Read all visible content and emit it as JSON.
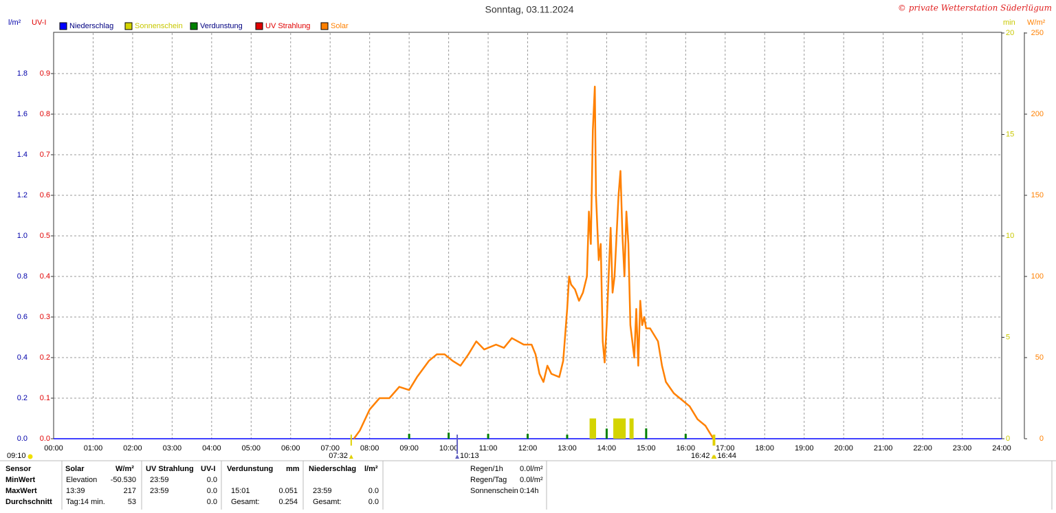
{
  "chart_data": {
    "type": "line",
    "title": "Sonntag, 03.11.2024",
    "copyright": "© private Wetterstation Süderlügum",
    "y_unit": "l/m²",
    "uv_unit": "UV-I",
    "y3_unit": "min",
    "y2_unit": "W/m²",
    "xlim": [
      0,
      24
    ],
    "xticks": [
      {
        "value": 0,
        "label": "00:00"
      },
      {
        "value": 1,
        "label": "01:00"
      },
      {
        "value": 2,
        "label": "02:00"
      },
      {
        "value": 3,
        "label": "03:00"
      },
      {
        "value": 4,
        "label": "04:00"
      },
      {
        "value": 5,
        "label": "05:00"
      },
      {
        "value": 6,
        "label": "06:00"
      },
      {
        "value": 7,
        "label": "07:00"
      },
      {
        "value": 8,
        "label": "08:00"
      },
      {
        "value": 9,
        "label": "09:00"
      },
      {
        "value": 10,
        "label": "10:00"
      },
      {
        "value": 11,
        "label": "11:00"
      },
      {
        "value": 12,
        "label": "12:00"
      },
      {
        "value": 13,
        "label": "13:00"
      },
      {
        "value": 14,
        "label": "14:00"
      },
      {
        "value": 15,
        "label": "15:00"
      },
      {
        "value": 16,
        "label": "16:00"
      },
      {
        "value": 17,
        "label": "17:00"
      },
      {
        "value": 18,
        "label": "18:00"
      },
      {
        "value": 19,
        "label": "19:00"
      },
      {
        "value": 20,
        "label": "20:00"
      },
      {
        "value": 21,
        "label": "21:00"
      },
      {
        "value": 22,
        "label": "22:00"
      },
      {
        "value": 23,
        "label": "23:00"
      },
      {
        "value": 24,
        "label": "24:00"
      }
    ],
    "ylim": [
      0,
      2
    ],
    "yticks": [
      {
        "value": 0,
        "label": "0.0"
      },
      0.2,
      0.4,
      0.6,
      0.8,
      {
        "value": 1,
        "label": "1.0"
      },
      1.2,
      1.4,
      1.6,
      1.8
    ],
    "uvlim": [
      0,
      1
    ],
    "uvticks": [
      {
        "value": 0,
        "label": "0.0"
      },
      0.1,
      0.2,
      0.3,
      0.4,
      0.5,
      0.6,
      0.7,
      0.8,
      0.9
    ],
    "y3lim": [
      0,
      20
    ],
    "y3ticks": [
      0,
      5,
      10,
      15,
      20
    ],
    "y2lim": [
      0,
      250
    ],
    "y2ticks": [
      0,
      50,
      100,
      150,
      200,
      250
    ],
    "grid": true,
    "series": [
      {
        "name": "Niederschlag",
        "color": "#0000ff",
        "x": [
          0,
          24
        ],
        "values": [
          0,
          0
        ]
      },
      {
        "name": "Sonnenschein",
        "color": "#d4d400",
        "axis": "y3",
        "x": [
          13.62,
          13.68,
          14.22,
          14.28,
          14.35,
          14.43,
          14.63
        ],
        "values": [
          1,
          1,
          1,
          1,
          1,
          1,
          1
        ]
      },
      {
        "name": "Verdunstung",
        "color": "#008000",
        "x": [
          9,
          10,
          11,
          12,
          13,
          14,
          15,
          16
        ],
        "values": [
          0.024,
          0.03,
          0.024,
          0.024,
          0.02,
          0.05,
          0.051,
          0.024
        ]
      },
      {
        "name": "UV Strahlung",
        "color": "#e00000",
        "axis": "uv",
        "x": [],
        "values": []
      },
      {
        "name": "Solar",
        "color": "#ff8000",
        "axis": "y2",
        "x": [
          7.6,
          7.75,
          8.0,
          8.25,
          8.5,
          8.75,
          9.0,
          9.2,
          9.5,
          9.7,
          9.9,
          10.1,
          10.3,
          10.5,
          10.7,
          10.9,
          11.2,
          11.4,
          11.6,
          11.9,
          12.1,
          12.2,
          12.3,
          12.4,
          12.5,
          12.6,
          12.8,
          12.9,
          13.0,
          13.05,
          13.1,
          13.2,
          13.3,
          13.4,
          13.5,
          13.55,
          13.6,
          13.65,
          13.7,
          13.73,
          13.8,
          13.85,
          13.9,
          13.95,
          14.0,
          14.05,
          14.1,
          14.15,
          14.2,
          14.3,
          14.35,
          14.4,
          14.45,
          14.5,
          14.55,
          14.6,
          14.7,
          14.75,
          14.8,
          14.85,
          14.9,
          14.95,
          15.0,
          15.1,
          15.3,
          15.4,
          15.5,
          15.7,
          15.9,
          16.1,
          16.3,
          16.5,
          16.7
        ],
        "values": [
          0,
          5,
          18,
          25,
          25,
          32,
          30,
          38,
          48,
          52,
          52,
          48,
          45,
          52,
          60,
          55,
          58,
          56,
          62,
          58,
          58,
          52,
          40,
          35,
          45,
          40,
          38,
          48,
          80,
          100,
          95,
          92,
          85,
          90,
          100,
          140,
          120,
          190,
          217,
          150,
          110,
          120,
          60,
          47,
          70,
          100,
          130,
          90,
          100,
          150,
          165,
          125,
          100,
          140,
          120,
          70,
          50,
          80,
          45,
          85,
          70,
          75,
          68,
          68,
          60,
          45,
          35,
          28,
          24,
          20,
          12,
          8,
          0
        ]
      }
    ],
    "events": [
      {
        "label": "07:32",
        "x": 7.533,
        "color": "#e0d000"
      },
      {
        "label": "10:13",
        "x": 10.217,
        "color": "#6060c0"
      },
      {
        "label": "16:42",
        "x": 16.7,
        "color": "#e0d000"
      },
      {
        "label": "16:44",
        "x": 16.733,
        "color": "#e0d000"
      }
    ],
    "daylength": "09:10"
  },
  "stats": {
    "row_labels": [
      "Sensor",
      "MinWert",
      "MaxWert",
      "Durchschnitt"
    ],
    "groups": [
      {
        "header": [
          "Solar",
          "W/m²"
        ],
        "rows": [
          [
            "Elevation",
            "-50.530"
          ],
          [
            "13:39",
            "217"
          ],
          [
            "Tag:14 min.",
            "53"
          ]
        ]
      },
      {
        "header": [
          "UV Strahlung",
          "UV-I"
        ],
        "rows": [
          [
            "23:59",
            "0.0"
          ],
          [
            "23:59",
            "0.0"
          ],
          [
            "0.0"
          ]
        ]
      },
      {
        "header": [
          "Verdunstung",
          "mm"
        ],
        "rows": [
          [],
          [
            "15:01",
            "0.051"
          ],
          [
            "Gesamt:",
            "0.254"
          ]
        ]
      },
      {
        "header": [
          "Niederschlag",
          "l/m²"
        ],
        "rows": [
          [],
          [
            "23:59",
            "0.0"
          ],
          [
            "Gesamt:",
            "0.0"
          ]
        ]
      }
    ],
    "extra": [
      [
        "Regen/1h",
        "0.0l/m²"
      ],
      [
        "Regen/Tag",
        "0.0l/m²"
      ],
      [
        "Sonnenschein",
        "0:14h"
      ]
    ]
  }
}
